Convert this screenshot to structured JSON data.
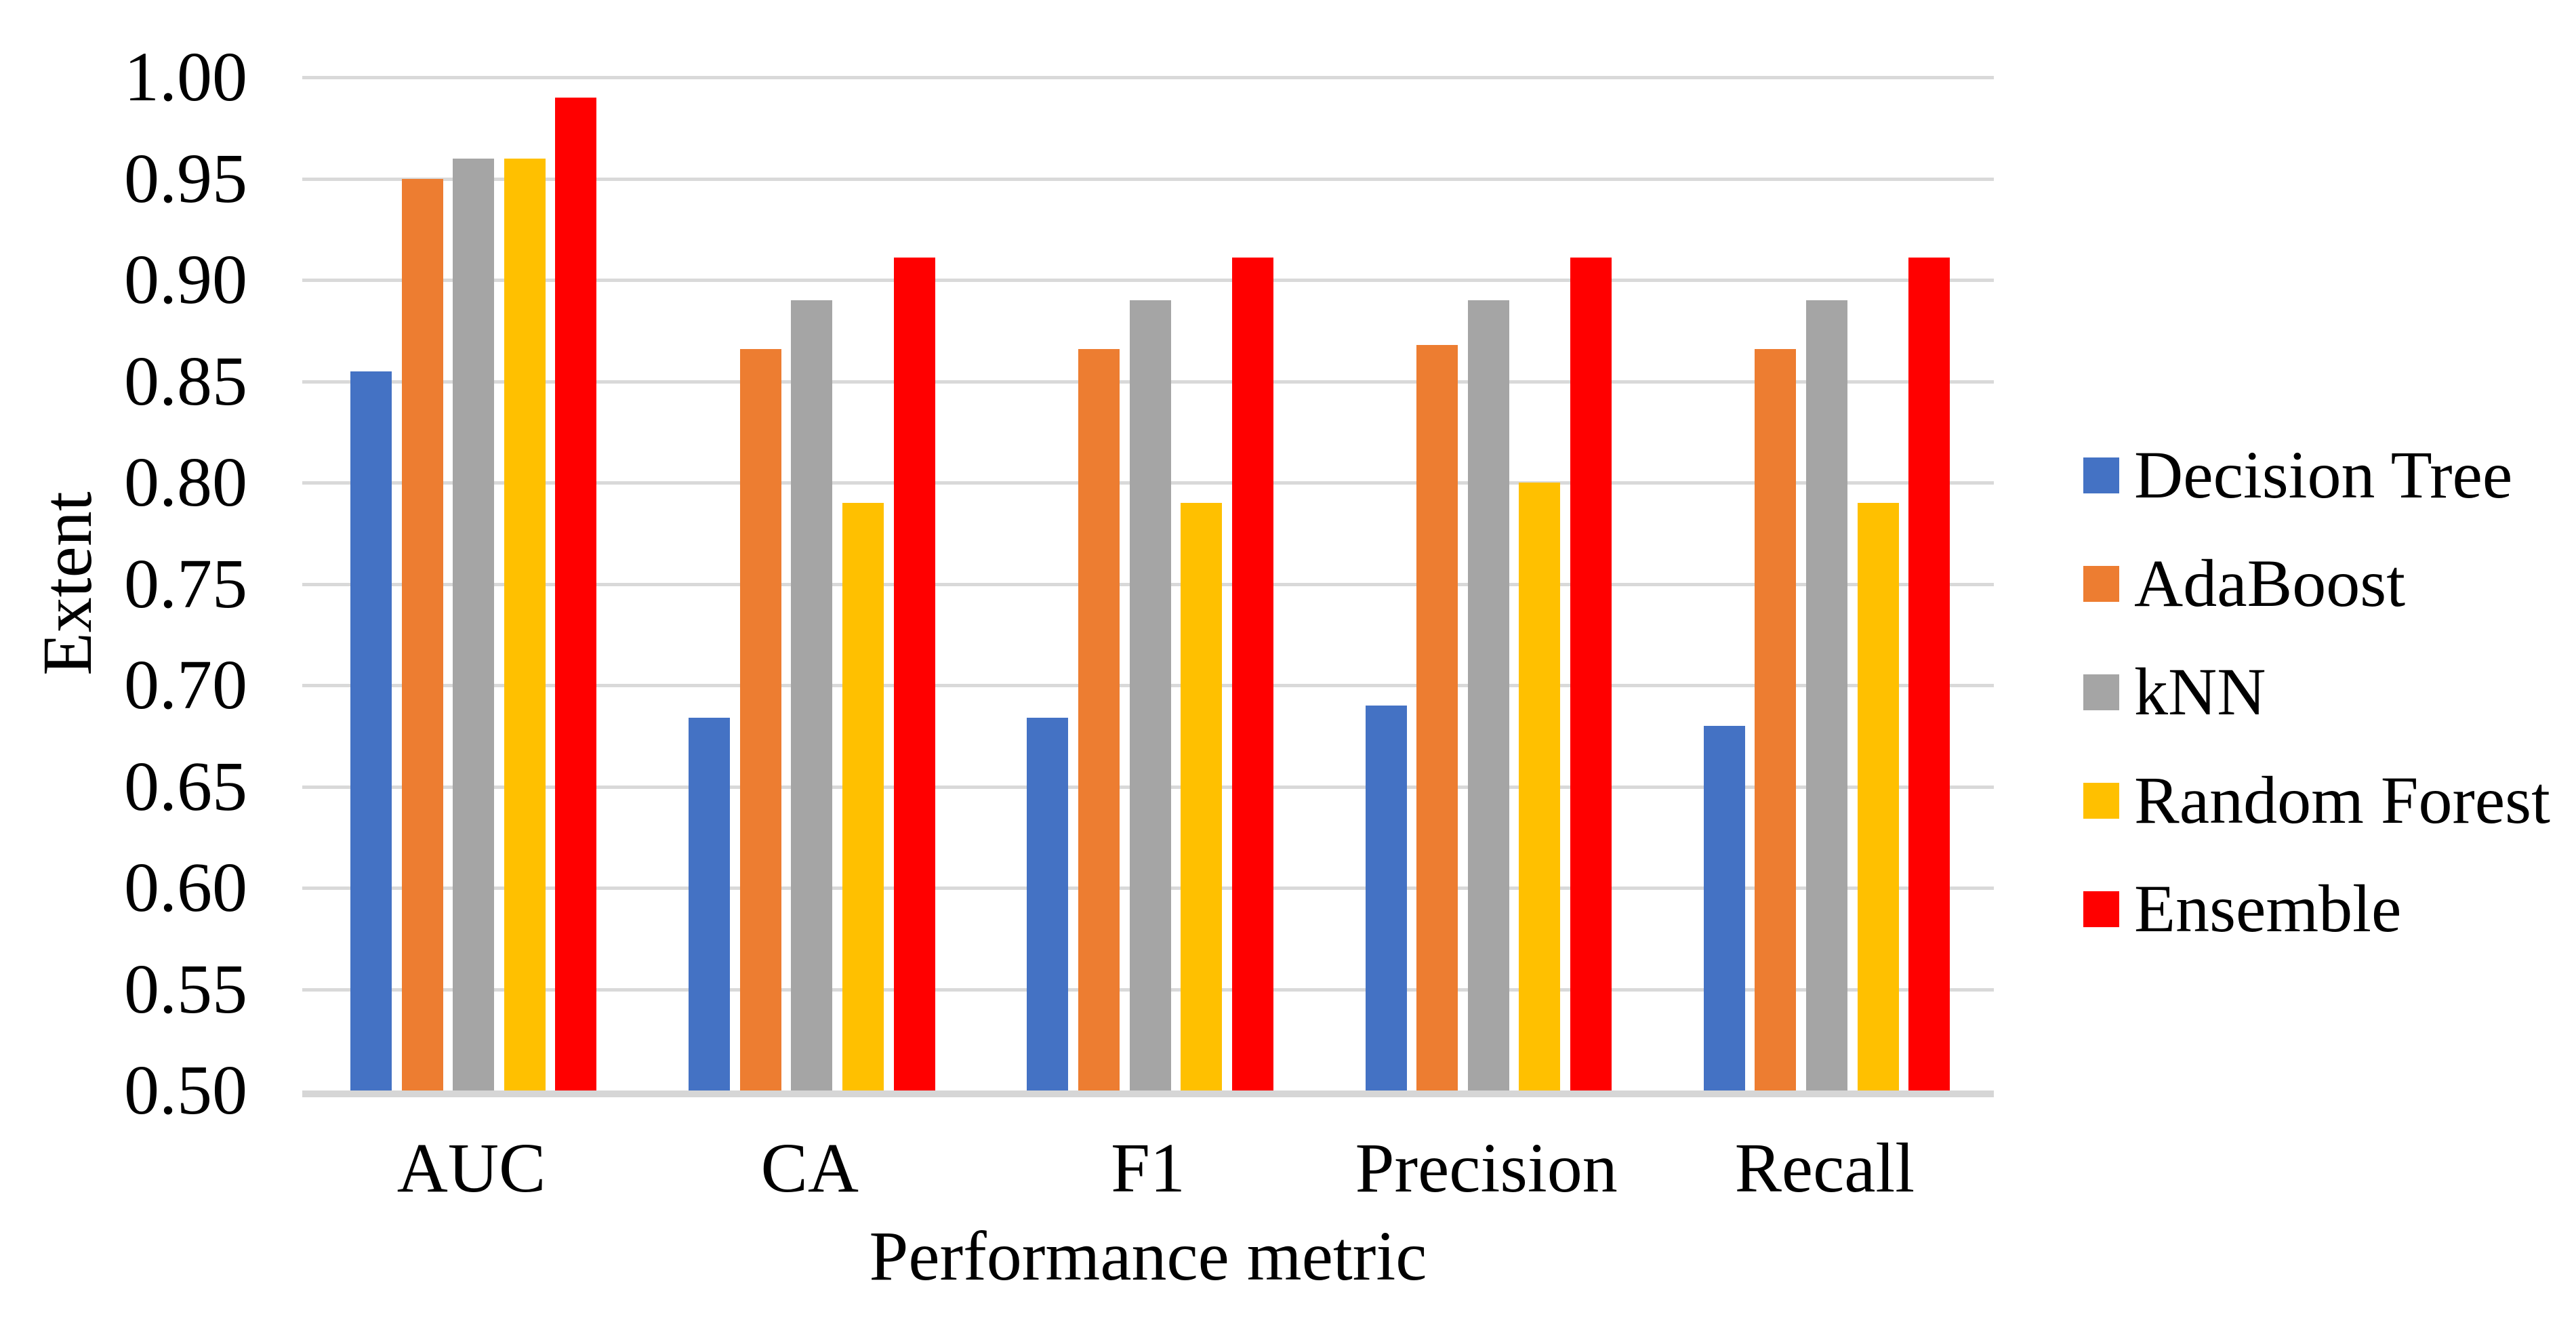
{
  "chart_data": {
    "type": "bar",
    "title": "",
    "categories": [
      "AUC",
      "CA",
      "F1",
      "Precision",
      "Recall"
    ],
    "series": [
      {
        "name": "Decision Tree",
        "color": "#4472C4",
        "values": [
          0.855,
          0.684,
          0.684,
          0.69,
          0.68
        ]
      },
      {
        "name": "AdaBoost",
        "color": "#ED7D31",
        "values": [
          0.95,
          0.866,
          0.866,
          0.868,
          0.866
        ]
      },
      {
        "name": "kNN",
        "color": "#A5A5A5",
        "values": [
          0.96,
          0.89,
          0.89,
          0.89,
          0.89
        ]
      },
      {
        "name": "Random Forest",
        "color": "#FFC000",
        "values": [
          0.96,
          0.79,
          0.79,
          0.8,
          0.79
        ]
      },
      {
        "name": "Ensemble",
        "color": "#FF0000",
        "values": [
          0.99,
          0.911,
          0.911,
          0.911,
          0.911
        ]
      }
    ],
    "xlabel": "Performance metric",
    "ylabel": "Extent",
    "ylim": [
      0.5,
      1.0
    ],
    "ytick_step": 0.05,
    "ytick_labels": [
      "1.00",
      "0.95",
      "0.90",
      "0.85",
      "0.80",
      "0.75",
      "0.70",
      "0.65",
      "0.60",
      "0.55",
      "0.50"
    ],
    "grid": "horizontal",
    "gridline_color": "#D9D9D9",
    "axis_line_color": "#D6D6D6",
    "background": "#FFFFFF",
    "legend_position": "right"
  }
}
